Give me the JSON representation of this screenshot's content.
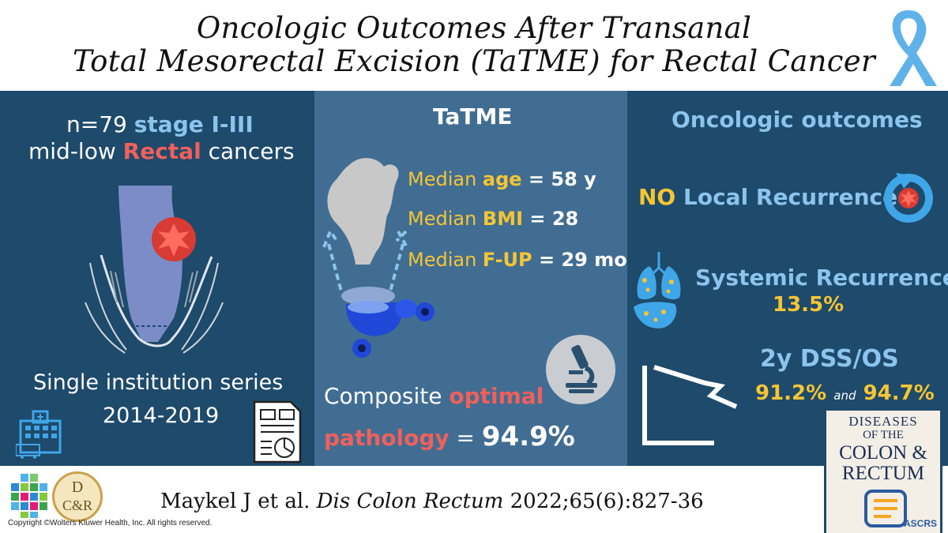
{
  "title": {
    "line1": "Oncologic Outcomes After Transanal",
    "line2": "Total Mesorectal Excision (TaTME) for Rectal Cancer"
  },
  "left": {
    "n_line": {
      "a": "n=79 ",
      "b": "stage I-III"
    },
    "type_line": {
      "a": "mid-low ",
      "b": "Rectal",
      "c": " cancers"
    },
    "series": "Single institution series",
    "years": "2014-2019"
  },
  "middle": {
    "heading": "TaTME",
    "age": {
      "label": "Median ",
      "key": "age",
      "value": " = 58 y"
    },
    "bmi": {
      "label": "Median ",
      "key": "BMI",
      "value": " = 28"
    },
    "fup": {
      "label": "Median ",
      "key": "F-UP",
      "value": " = 29 mo"
    },
    "composite": {
      "a": "Composite ",
      "b": "optimal"
    },
    "pathology": {
      "a": "pathology",
      "b": " = ",
      "c": "94.9%"
    }
  },
  "right": {
    "heading": "Oncologic outcomes",
    "local": {
      "a": "NO",
      "b": " Local Recurrence"
    },
    "systemic": {
      "label": "Systemic Recurrence",
      "value": "13.5%"
    },
    "survival": {
      "label": "2y DSS/OS",
      "dss": "91.2%",
      "and": "and",
      "os": "94.7%"
    }
  },
  "footer": {
    "citation_authors": "Maykel J et al. ",
    "citation_journal": "Dis Colon Rectum",
    "citation_ref": " 2022;65(6):827-36",
    "copyright": "Copyright ©Wolters Kluwer Health, Inc. All rights reserved.",
    "logo_text_top": "D",
    "logo_text_bottom": "C&R"
  },
  "journal_cover": {
    "line1": "DISEASES",
    "line2": "OF THE",
    "line3": "COLON &",
    "line4": "RECTUM",
    "society": "ASCRS"
  },
  "colors": {
    "dark_panel": "#1e4a6b",
    "mid_panel": "#416d93",
    "light_blue": "#8bc4ec",
    "red": "#f0605b",
    "yellow": "#f5c533"
  }
}
